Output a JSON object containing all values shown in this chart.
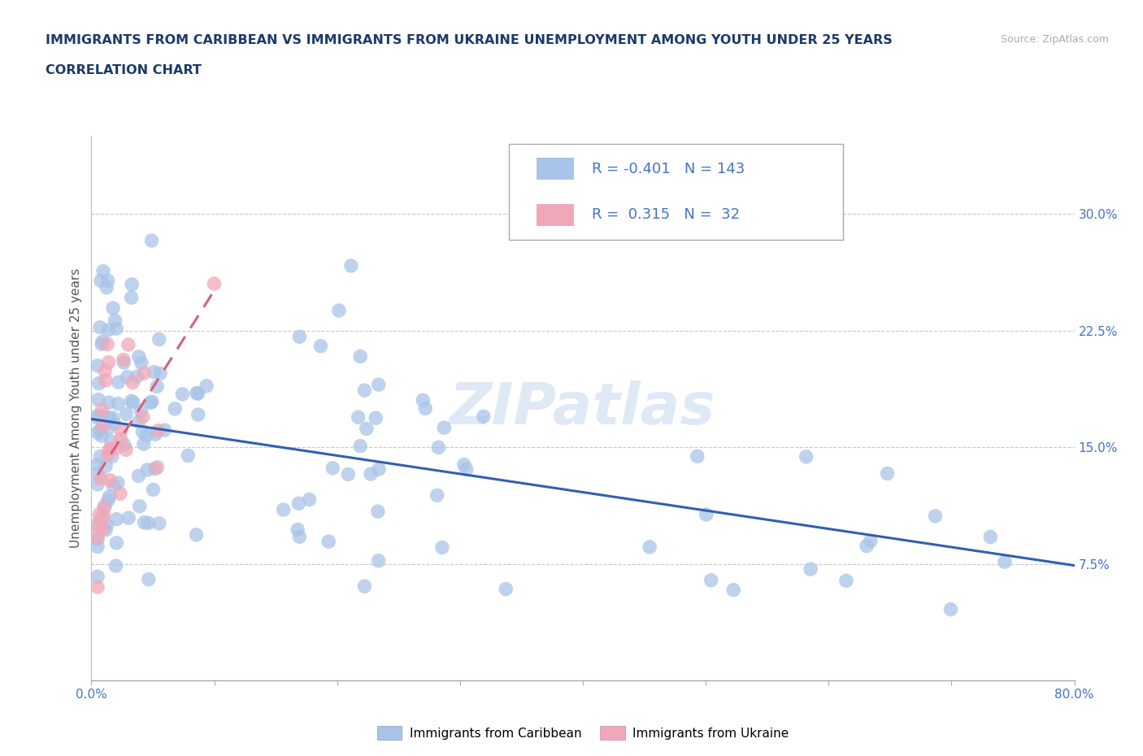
{
  "title_line1": "IMMIGRANTS FROM CARIBBEAN VS IMMIGRANTS FROM UKRAINE UNEMPLOYMENT AMONG YOUTH UNDER 25 YEARS",
  "title_line2": "CORRELATION CHART",
  "source_text": "Source: ZipAtlas.com",
  "ylabel": "Unemployment Among Youth under 25 years",
  "xlim": [
    0.0,
    0.8
  ],
  "ylim": [
    0.0,
    0.35
  ],
  "yticks": [
    0.0,
    0.075,
    0.15,
    0.225,
    0.3
  ],
  "ytick_labels": [
    "",
    "7.5%",
    "15.0%",
    "22.5%",
    "30.0%"
  ],
  "xtick_labels_left": "0.0%",
  "xtick_labels_right": "80.0%",
  "caribbean_color": "#a8c4e8",
  "ukraine_color": "#f0a8b8",
  "caribbean_line_color": "#3060b0",
  "ukraine_line_color": "#d46080",
  "caribbean_R": -0.401,
  "caribbean_N": 143,
  "ukraine_R": 0.315,
  "ukraine_N": 32,
  "legend_label_caribbean": "Immigrants from Caribbean",
  "legend_label_ukraine": "Immigrants from Ukraine",
  "watermark": "ZIPatlas",
  "background_color": "#ffffff",
  "grid_color": "#c8c8c8",
  "title_color": "#1a3a6a",
  "ylabel_color": "#555555",
  "tick_color": "#4472c4",
  "legend_text_color": "#4472c4",
  "source_color": "#aaaaaa"
}
